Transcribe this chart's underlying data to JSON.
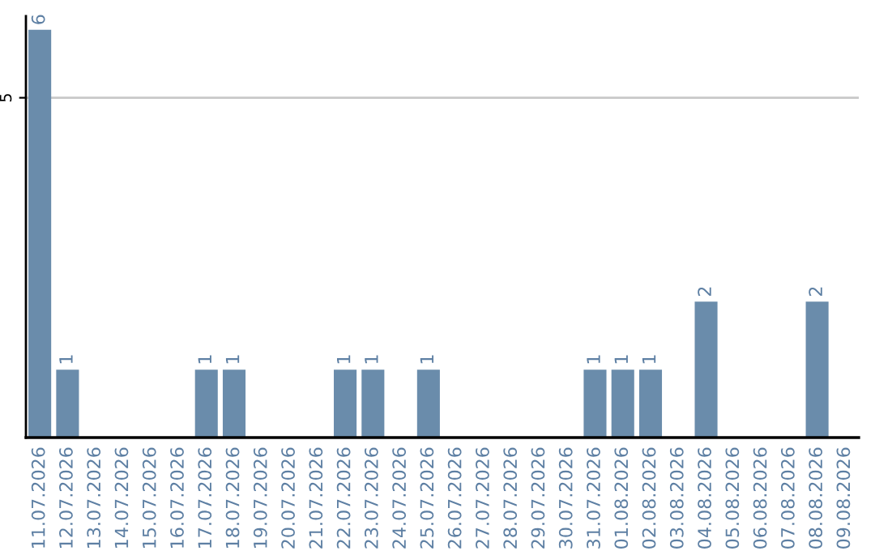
{
  "chart_data": {
    "type": "bar",
    "categories": [
      "11.07.2026",
      "12.07.2026",
      "13.07.2026",
      "14.07.2026",
      "15.07.2026",
      "16.07.2026",
      "17.07.2026",
      "18.07.2026",
      "19.07.2026",
      "20.07.2026",
      "21.07.2026",
      "22.07.2026",
      "23.07.2026",
      "24.07.2026",
      "25.07.2026",
      "26.07.2026",
      "27.07.2026",
      "28.07.2026",
      "29.07.2026",
      "30.07.2026",
      "31.07.2026",
      "01.08.2026",
      "02.08.2026",
      "03.08.2026",
      "04.08.2026",
      "05.08.2026",
      "06.08.2026",
      "07.08.2026",
      "08.08.2026",
      "09.08.2026"
    ],
    "values": [
      6,
      1,
      0,
      0,
      0,
      0,
      1,
      1,
      0,
      0,
      0,
      1,
      1,
      0,
      1,
      0,
      0,
      0,
      0,
      0,
      1,
      1,
      1,
      0,
      2,
      0,
      0,
      0,
      2,
      0
    ],
    "value_labels": [
      "6",
      "1",
      null,
      null,
      null,
      null,
      "1",
      "1",
      null,
      null,
      null,
      "1",
      "1",
      null,
      "1",
      null,
      null,
      null,
      null,
      null,
      "1",
      "1",
      "1",
      null,
      "2",
      null,
      null,
      null,
      "2",
      null
    ],
    "color": "#6a8cab",
    "ylim": [
      0,
      6.2
    ],
    "yticks": [
      5
    ],
    "grid": "y"
  }
}
